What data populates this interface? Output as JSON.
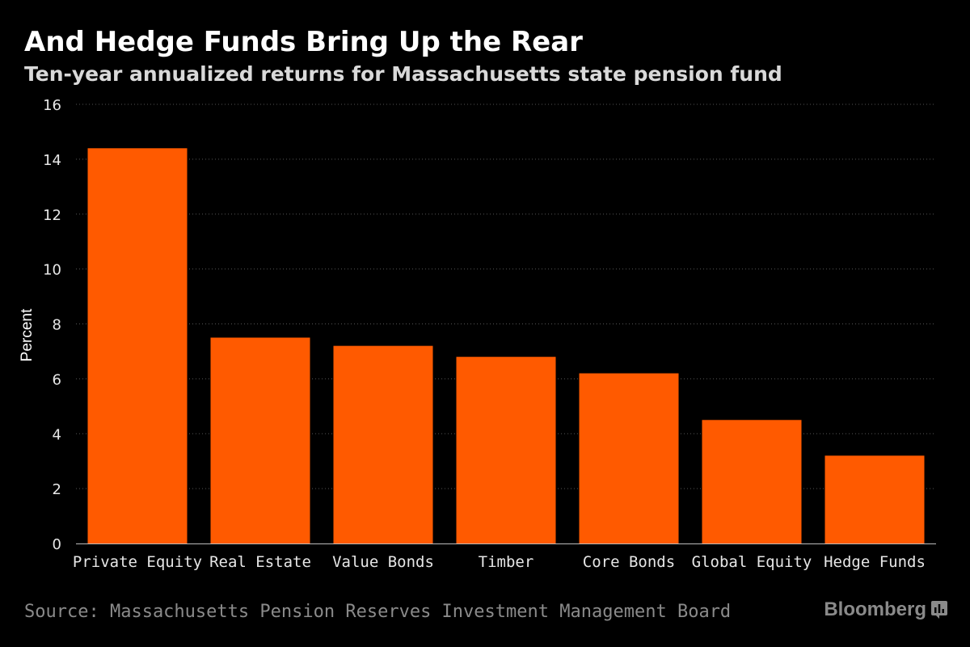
{
  "chart_data": {
    "type": "bar",
    "title": "And Hedge Funds Bring Up the Rear",
    "subtitle": "Ten-year annualized returns for Massachusetts state pension fund",
    "xlabel": "",
    "ylabel": "Percent",
    "ylim": [
      0,
      16
    ],
    "yticks": [
      0,
      2,
      4,
      6,
      8,
      10,
      12,
      14,
      16
    ],
    "grid": true,
    "categories": [
      "Private Equity",
      "Real Estate",
      "Value Bonds",
      "Timber",
      "Core Bonds",
      "Global Equity",
      "Hedge Funds"
    ],
    "values": [
      14.4,
      7.5,
      7.2,
      6.8,
      6.2,
      4.5,
      3.2
    ],
    "bar_color": "#ff5a00",
    "source": "Source: Massachusetts Pension Reserves Investment Management Board"
  },
  "brand": {
    "name": "Bloomberg",
    "icon": "bloomberg-chart-icon"
  }
}
